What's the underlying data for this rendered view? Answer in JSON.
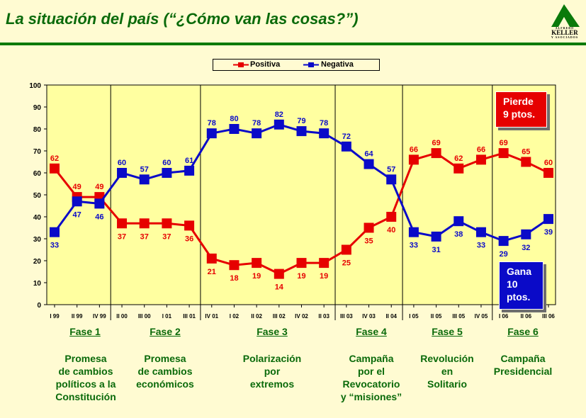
{
  "header": {
    "title": "La situación del país (“¿Cómo van las cosas?”)"
  },
  "logo": {
    "top_text": "ALFREDO",
    "name": "KELLER",
    "bottom_text": "Y ASOCIADOS"
  },
  "legend": {
    "positive": "Positiva",
    "negative": "Negativa"
  },
  "colors": {
    "positive": "#E60000",
    "negative": "#0A0AC8",
    "plot_bg": "#FFFFA0",
    "accent": "#0A6A0A"
  },
  "callouts": {
    "pierde": [
      "Pierde",
      "9 ptos."
    ],
    "gana": [
      "Gana",
      "10",
      "ptos."
    ]
  },
  "phases": [
    {
      "label": "Fase 1",
      "desc": [
        "Promesa",
        "de cambios",
        "políticos a la",
        "Constitución"
      ]
    },
    {
      "label": "Fase 2",
      "desc": [
        "Promesa",
        "de cambios",
        "económicos"
      ]
    },
    {
      "label": "Fase 3",
      "desc": [
        "Polarización",
        "por",
        "extremos"
      ]
    },
    {
      "label": "Fase 4",
      "desc": [
        "Campaña",
        "por el",
        "Revocatorio",
        "y “misiones”"
      ]
    },
    {
      "label": "Fase 5",
      "desc": [
        "Revolución",
        "en",
        "Solitario"
      ]
    },
    {
      "label": "Fase 6",
      "desc": [
        "Campaña",
        "Presidencial"
      ]
    }
  ],
  "chart_data": {
    "type": "line",
    "categories": [
      "I  99",
      "II 99",
      "IV 99",
      "II 00",
      "III 00",
      "I  01",
      "III 01",
      "IV 01",
      "I  02",
      "II 02",
      "III 02",
      "IV 02",
      "II  03",
      "III 03",
      "IV 03",
      "II 04",
      "I 05",
      "II 05",
      "III 05",
      "IV 05",
      "I 06",
      "II 06",
      "III 06"
    ],
    "series": [
      {
        "name": "Positiva",
        "values": [
          62,
          49,
          49,
          37,
          37,
          37,
          36,
          21,
          18,
          19,
          14,
          19,
          19,
          25,
          35,
          40,
          66,
          69,
          62,
          66,
          69,
          65,
          60
        ]
      },
      {
        "name": "Negativa",
        "values": [
          33,
          47,
          46,
          60,
          57,
          60,
          61,
          78,
          80,
          78,
          82,
          79,
          78,
          72,
          64,
          57,
          33,
          31,
          38,
          33,
          29,
          32,
          39
        ]
      }
    ],
    "ylim": [
      0,
      100
    ],
    "yticks": [
      0,
      10,
      20,
      30,
      40,
      50,
      60,
      70,
      80,
      90,
      100
    ],
    "grid": false,
    "legend": "top",
    "phase_boundaries_after": [
      2,
      6,
      12,
      15,
      19
    ]
  }
}
